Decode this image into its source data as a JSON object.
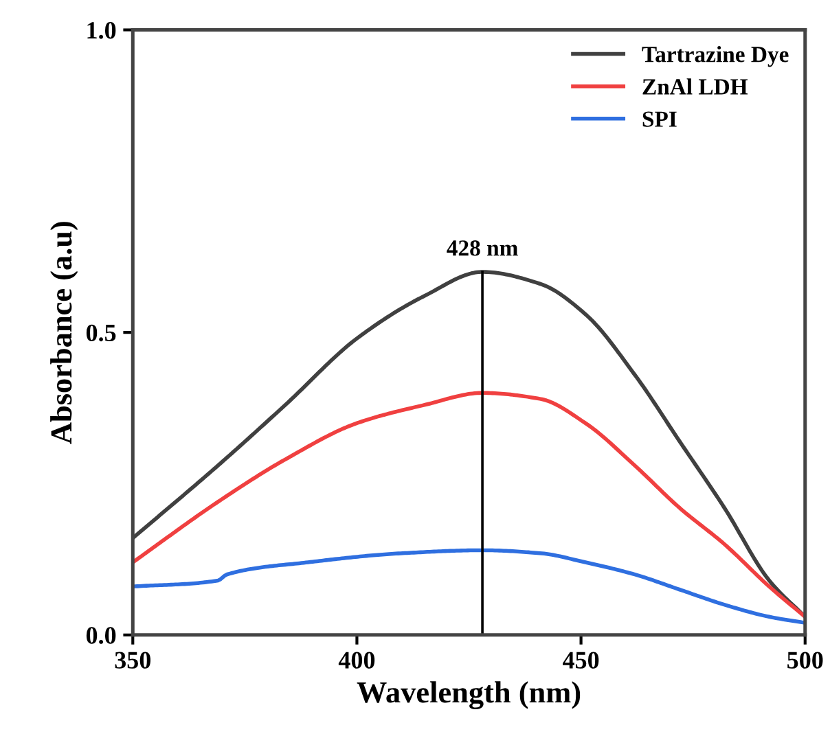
{
  "chart_data": {
    "type": "line",
    "xlabel": "Wavelength (nm)",
    "ylabel": "Absorbance (a.u)",
    "x": [
      350,
      369,
      384,
      400,
      415,
      428,
      441,
      451,
      462,
      472,
      482,
      492,
      500
    ],
    "series": [
      {
        "name": "Tartrazine Dye",
        "color": "#404040",
        "values": [
          0.16,
          0.28,
          0.38,
          0.49,
          0.56,
          0.6,
          0.58,
          0.53,
          0.43,
          0.32,
          0.21,
          0.09,
          0.03
        ]
      },
      {
        "name": "ZnAl LDH",
        "color": "#f04040",
        "values": [
          0.12,
          0.22,
          0.29,
          0.35,
          0.38,
          0.4,
          0.39,
          0.35,
          0.28,
          0.21,
          0.15,
          0.08,
          0.03
        ]
      },
      {
        "name": "SPI",
        "color": "#2f6fe0",
        "x": [
          350,
          369,
          371,
          389,
          410,
          428,
          441,
          451,
          462,
          472,
          482,
          492,
          500
        ],
        "values": [
          0.08,
          0.09,
          0.1,
          0.12,
          0.135,
          0.14,
          0.135,
          0.12,
          0.1,
          0.075,
          0.05,
          0.03,
          0.02
        ]
      }
    ],
    "xlim": [
      350,
      500
    ],
    "xticks": [
      350,
      400,
      450,
      500
    ],
    "ylim": [
      0,
      1
    ],
    "yticks": [
      {
        "value": 0,
        "label": "0.0"
      },
      {
        "value": 0.5,
        "label": "0.5"
      },
      {
        "value": 1,
        "label": "1.0"
      }
    ],
    "ref_lines": [
      {
        "axis": "x",
        "value": 428,
        "label": "428 nm",
        "color": "#000000",
        "line_style": "solid"
      }
    ],
    "legend": "top right",
    "grid": false,
    "marker": "none",
    "line_style": "solid"
  }
}
